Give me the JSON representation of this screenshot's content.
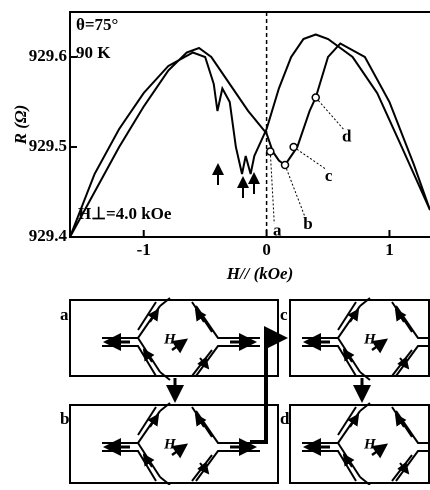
{
  "chart_data": {
    "type": "line",
    "x_label": "H// (kOe)",
    "y_label": "R (Ω)",
    "annotations": [
      "θ=75°",
      "90 K",
      "H⊥=4.0 kOe"
    ],
    "xlim": [
      -1.6,
      1.33
    ],
    "ylim": [
      929.4,
      929.65
    ],
    "xticks": [
      -1,
      0,
      1
    ],
    "yticks": [
      929.4,
      929.5,
      929.6
    ],
    "vline": 0,
    "series": [
      {
        "color": "#000000",
        "x": [
          -1.6,
          -1.4,
          -1.2,
          -1.0,
          -0.8,
          -0.65,
          -0.55,
          -0.45,
          -0.3,
          -0.15,
          0,
          0.05,
          0.1,
          0.15,
          0.2,
          0.25,
          0.3,
          0.35,
          0.4,
          0.5,
          0.6,
          0.8,
          1.0,
          1.2,
          1.33
        ],
        "values": [
          929.4,
          929.45,
          929.5,
          929.545,
          929.585,
          929.605,
          929.61,
          929.6,
          929.57,
          929.54,
          929.515,
          929.495,
          929.485,
          929.48,
          929.49,
          929.5,
          929.52,
          929.54,
          929.555,
          929.6,
          929.615,
          929.6,
          929.55,
          929.48,
          929.43
        ]
      },
      {
        "color": "#000000",
        "x": [
          -1.6,
          -1.4,
          -1.2,
          -1.0,
          -0.8,
          -0.6,
          -0.5,
          -0.43,
          -0.4,
          -0.36,
          -0.3,
          -0.25,
          -0.2,
          -0.17,
          -0.13,
          -0.1,
          -0.05,
          0,
          0.1,
          0.2,
          0.3,
          0.4,
          0.5,
          0.7,
          0.9,
          1.1,
          1.33
        ],
        "values": [
          929.4,
          929.47,
          929.52,
          929.56,
          929.59,
          929.605,
          929.6,
          929.57,
          929.54,
          929.565,
          929.55,
          929.5,
          929.47,
          929.49,
          929.47,
          929.49,
          929.505,
          929.52,
          929.565,
          929.6,
          929.62,
          929.625,
          929.62,
          929.6,
          929.56,
          929.5,
          929.43
        ]
      }
    ],
    "points": {
      "labels": [
        "a",
        "b",
        "c",
        "d"
      ],
      "x": [
        0.03,
        0.15,
        0.22,
        0.4
      ],
      "values": [
        929.495,
        929.48,
        929.5,
        929.555
      ]
    }
  },
  "diagram": {
    "panels": [
      {
        "label": "a",
        "field": "H"
      },
      {
        "label": "b",
        "field": "H"
      },
      {
        "label": "c",
        "field": "H"
      },
      {
        "label": "d",
        "field": "H"
      }
    ]
  }
}
